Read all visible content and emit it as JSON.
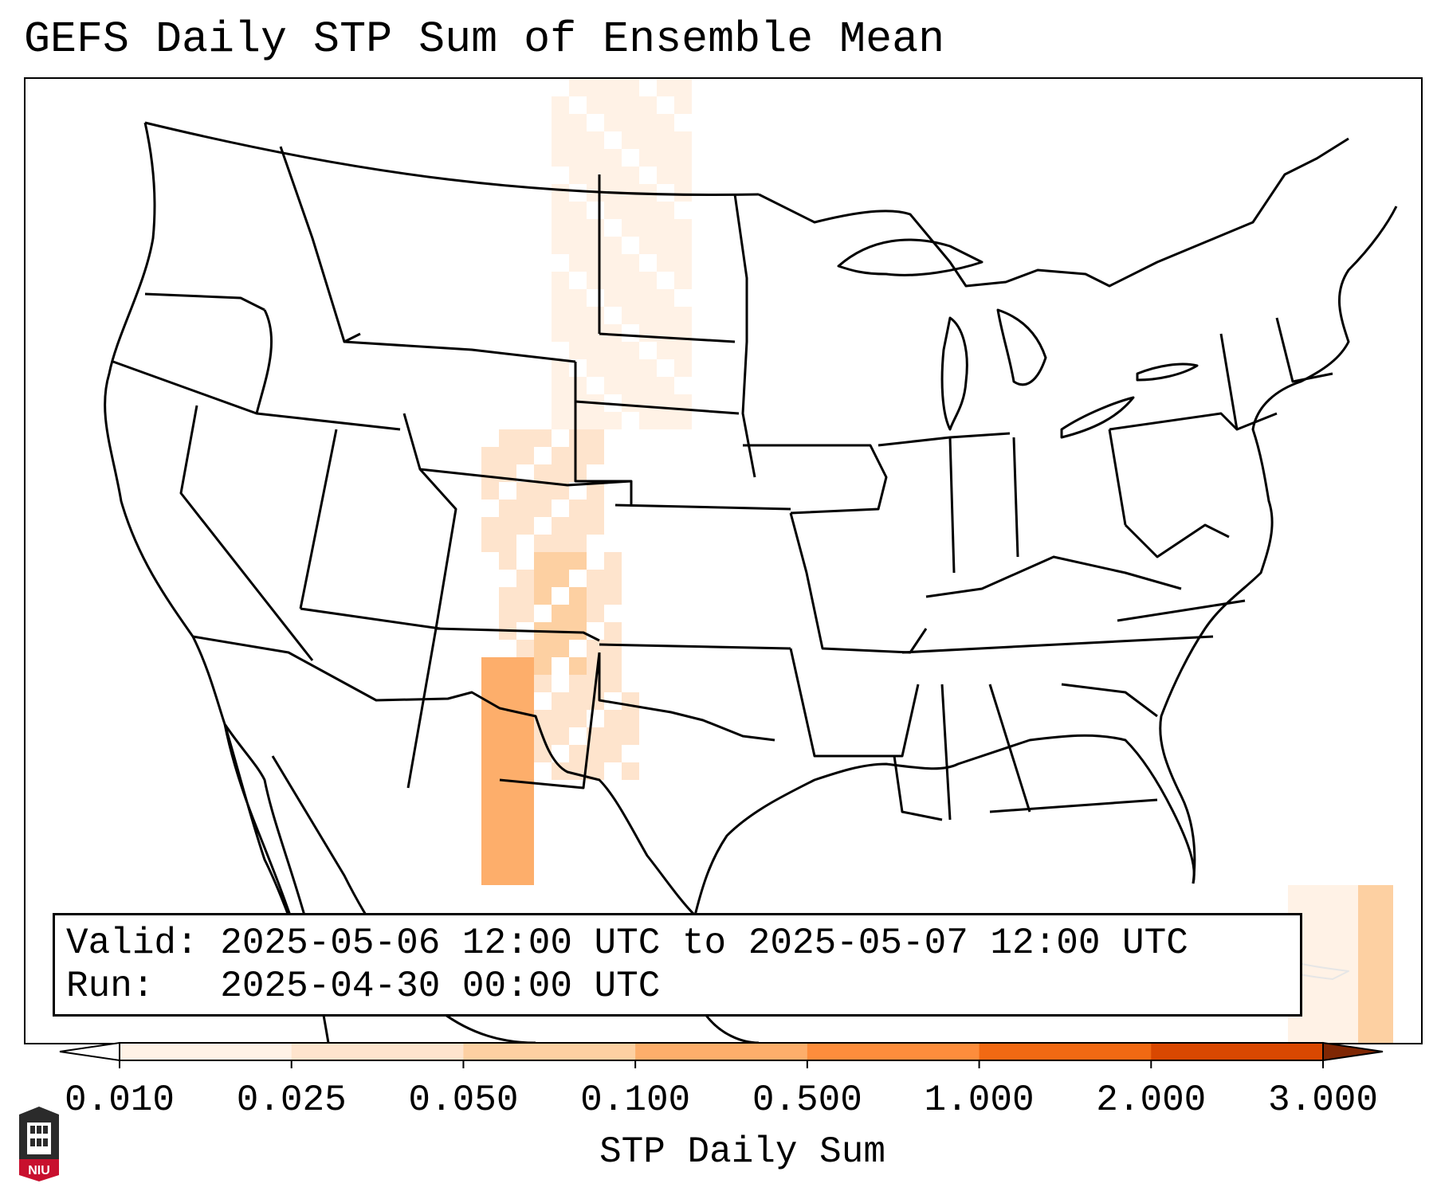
{
  "header": {
    "title": "GEFS Daily STP Sum of Ensemble Mean"
  },
  "info_box": {
    "valid_label": "Valid:",
    "valid_value": "2025-05-06 12:00 UTC to 2025-05-07 12:00 UTC",
    "run_label": "Run:",
    "run_value": "2025-04-30 00:00 UTC"
  },
  "colorbar": {
    "title": "STP Daily Sum",
    "ticks": [
      "0.010",
      "0.025",
      "0.050",
      "0.100",
      "0.500",
      "1.000",
      "2.000",
      "3.000"
    ],
    "colors": [
      "#fff2e6",
      "#fee4cd",
      "#fdd0a2",
      "#fdae6b",
      "#fd8d3c",
      "#f16913",
      "#d94801",
      "#a63603"
    ],
    "under_color": "#ffffff",
    "over_color": "#7f2704",
    "extend": "both"
  },
  "logo": {
    "text": "NIU"
  },
  "map": {
    "region": "CONUS",
    "colors": {
      "land_lines": "#000000",
      "mexico_lines": "#000000",
      "cuba_lines": "#e6e6e6"
    },
    "stp_field_levels": [
      0.015,
      0.03,
      0.06,
      0.2
    ]
  }
}
